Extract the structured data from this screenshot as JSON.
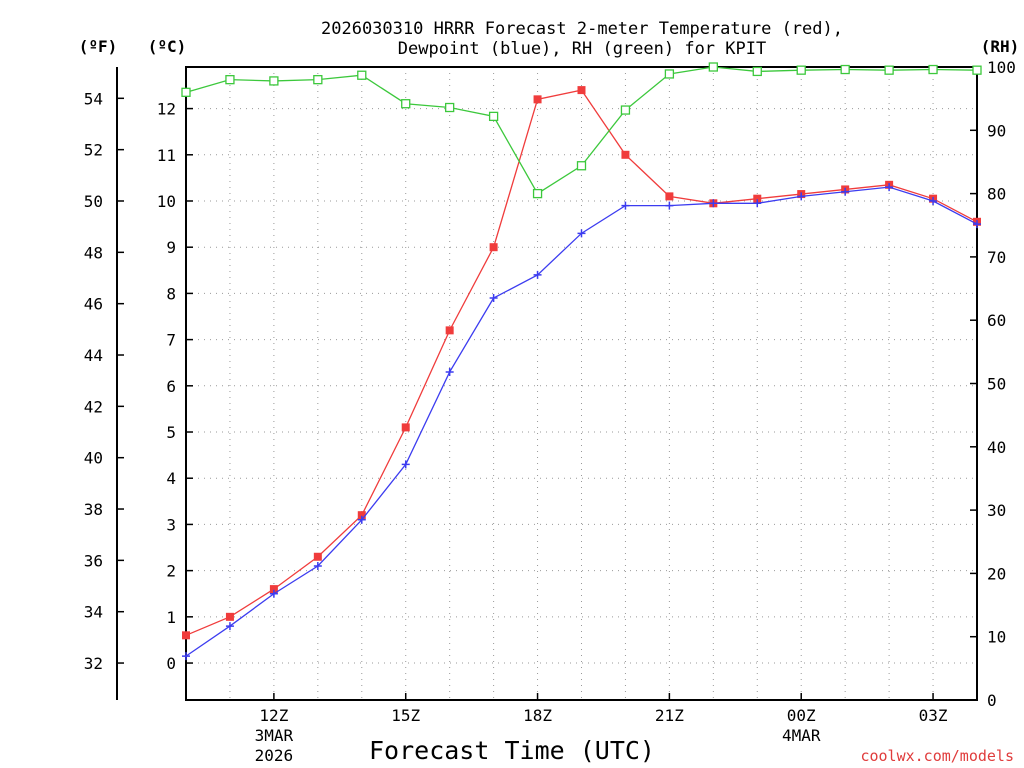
{
  "chart_data": {
    "type": "line",
    "title": [
      "2026030310 HRRR Forecast 2-meter Temperature (red),",
      "Dewpoint (blue), RH (green) for KPIT"
    ],
    "xlabel": "Forecast Time (UTC)",
    "units": {
      "fahrenheit": "(ºF)",
      "celsius": "(ºC)",
      "rh": "(RH)"
    },
    "credit": "coolwx.com/models",
    "x_hours": [
      0,
      1,
      2,
      3,
      4,
      5,
      6,
      7,
      8,
      9,
      10,
      11,
      12,
      13,
      14,
      15,
      16,
      17,
      18
    ],
    "xlim": [
      0,
      18
    ],
    "x_ticks": [
      {
        "hour": 2,
        "label": "12Z",
        "sub1": "3MAR",
        "sub2": "2026"
      },
      {
        "hour": 5,
        "label": "15Z"
      },
      {
        "hour": 8,
        "label": "18Z"
      },
      {
        "hour": 11,
        "label": "21Z"
      },
      {
        "hour": 14,
        "label": "00Z",
        "sub1": "4MAR"
      },
      {
        "hour": 17,
        "label": "03Z"
      }
    ],
    "y_celsius": {
      "ylim": [
        -0.8,
        12.9
      ],
      "ticks": [
        "0",
        "1",
        "2",
        "3",
        "4",
        "5",
        "6",
        "7",
        "8",
        "9",
        "10",
        "11",
        "12"
      ]
    },
    "y_fahrenheit": {
      "ylim": [
        30.56,
        55.22
      ],
      "ticks": [
        "32",
        "34",
        "36",
        "38",
        "40",
        "42",
        "44",
        "46",
        "48",
        "50",
        "52",
        "54"
      ]
    },
    "y_rh": {
      "ylim": [
        0,
        100
      ],
      "ticks": [
        "0",
        "10",
        "20",
        "30",
        "40",
        "50",
        "60",
        "70",
        "80",
        "90",
        "100"
      ]
    },
    "series": [
      {
        "name": "Temperature",
        "axis": "celsius",
        "color": "#f03c3c",
        "marker": "filled-square",
        "values": [
          0.6,
          1.0,
          1.6,
          2.3,
          3.2,
          5.1,
          7.2,
          9.0,
          12.2,
          12.4,
          11.0,
          10.1,
          9.95,
          10.05,
          10.15,
          10.25,
          10.35,
          10.05,
          9.55
        ]
      },
      {
        "name": "Dewpoint",
        "axis": "celsius",
        "color": "#3c3cf0",
        "marker": "plus",
        "values": [
          0.15,
          0.8,
          1.5,
          2.1,
          3.1,
          4.3,
          6.3,
          7.9,
          8.4,
          9.3,
          9.9,
          9.9,
          9.95,
          9.95,
          10.1,
          10.2,
          10.3,
          10.0,
          9.5
        ]
      },
      {
        "name": "RH",
        "axis": "rh",
        "color": "#3cc83c",
        "marker": "open-square",
        "values": [
          96,
          98,
          97.8,
          98,
          98.7,
          94.2,
          93.6,
          92.2,
          80,
          84.4,
          93.2,
          98.9,
          100,
          99.3,
          99.5,
          99.6,
          99.5,
          99.6,
          99.5
        ]
      }
    ]
  }
}
